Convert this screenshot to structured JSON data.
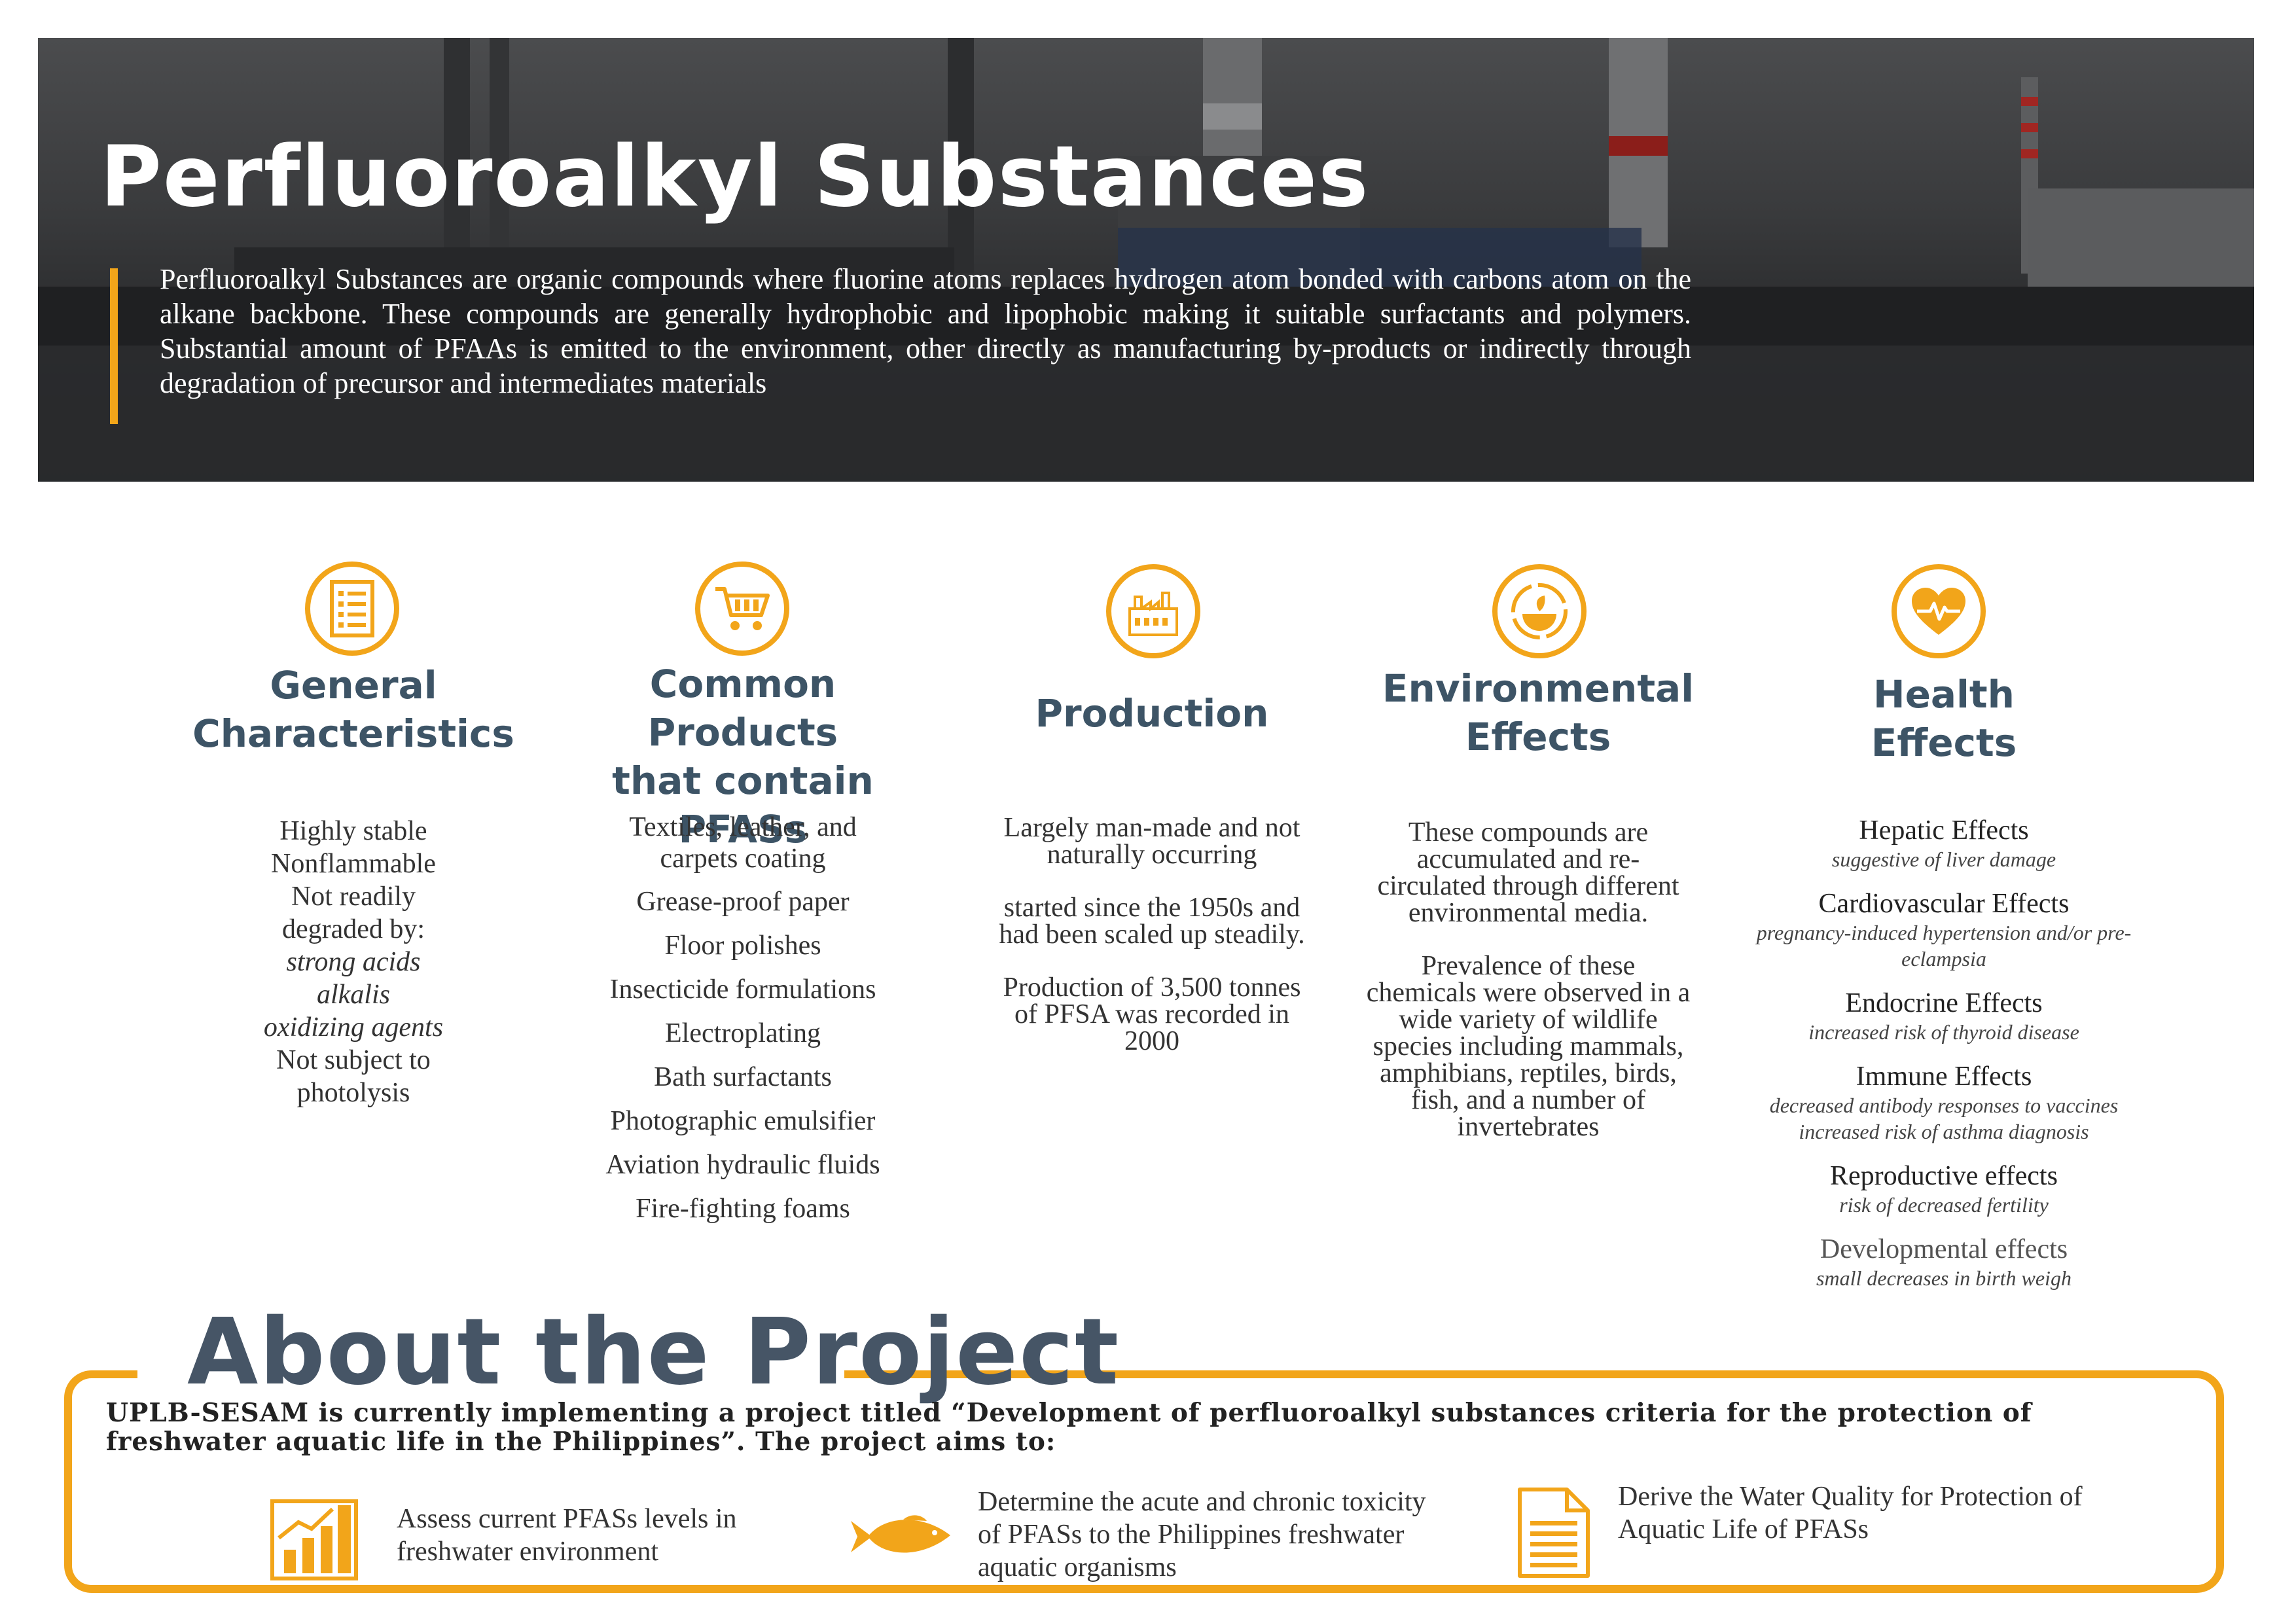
{
  "header": {
    "title": "Perfluoroalkyl Substances",
    "description": "Perfluoroalkyl Substances are organic compounds where fluorine atoms replaces hydrogen atom bonded with carbons atom on the alkane backbone. These compounds are generally hydrophobic and lipophobic making it suitable surfactants and polymers. Substantial amount of PFAAs is emitted to the environment, other directly as manufacturing by-products or indirectly through degradation of precursor and intermediates materials"
  },
  "columns": {
    "general": {
      "icon": "checklist-icon",
      "title_line1": "General",
      "title_line2": "Characteristics",
      "items": [
        "Highly stable",
        "Nonflammable",
        "Not readily",
        "degraded by:",
        "strong acids",
        "alkalis",
        "oxidizing agents",
        "Not subject to",
        "photolysis"
      ]
    },
    "products": {
      "icon": "shopping-cart-icon",
      "title_line1": "Common Products",
      "title_line2": "that contain PFASs",
      "items": [
        "Textiles, leather, and carpets coating",
        "Grease-proof paper",
        "Floor polishes",
        "Insecticide formulations",
        "Electroplating",
        "Bath surfactants",
        "Photographic emulsifier",
        "Aviation hydraulic fluids",
        "Fire-fighting foams"
      ]
    },
    "production": {
      "icon": "factory-icon",
      "title": "Production",
      "paragraphs": [
        "Largely man-made and not naturally occurring",
        "started since the 1950s and had been scaled up steadily.",
        "Production of 3,500 tonnes of PFSA was recorded in 2000"
      ]
    },
    "environmental": {
      "icon": "earth-cycle-icon",
      "title_line1": "Environmental",
      "title_line2": "Effects",
      "paragraphs": [
        "These compounds are accumulated and re-circulated through different environmental media.",
        "Prevalence of these chemicals were observed in a wide variety of wildlife species including mammals, amphibians, reptiles, birds, fish, and a number of invertebrates"
      ]
    },
    "health": {
      "icon": "heart-pulse-icon",
      "title_line1": "Health",
      "title_line2": "Effects",
      "items": [
        {
          "name": "Hepatic Effects",
          "desc": "suggestive of liver damage"
        },
        {
          "name": "Cardiovascular Effects",
          "desc": "pregnancy-induced hypertension and/or pre-eclampsia"
        },
        {
          "name": "Endocrine Effects",
          "desc": "increased risk of thyroid disease"
        },
        {
          "name": "Immune Effects",
          "desc": "decreased antibody responses to vaccines increased risk of asthma diagnosis"
        },
        {
          "name": "Reproductive effects",
          "desc": "risk of decreased fertility"
        },
        {
          "name": "Developmental effects",
          "desc": "small decreases in birth weigh"
        }
      ]
    }
  },
  "about": {
    "title": "About the Project",
    "description": "UPLB-SESAM is currently implementing a project titled “Development of perfluoroalkyl substances criteria for the protection of freshwater aquatic life in the Philippines”. The project aims to:",
    "aims": [
      {
        "icon": "bar-chart-icon",
        "text": "Assess current PFASs levels in freshwater environment"
      },
      {
        "icon": "fish-icon",
        "text": "Determine the acute and chronic toxicity of PFASs to the Philippines freshwater aquatic organisms"
      },
      {
        "icon": "document-icon",
        "text": "Derive the Water Quality for Protection of Aquatic Life of PFASs"
      }
    ]
  },
  "colors": {
    "accent": "#f2a51a",
    "heading": "#3d5466",
    "about_heading": "#465566"
  }
}
